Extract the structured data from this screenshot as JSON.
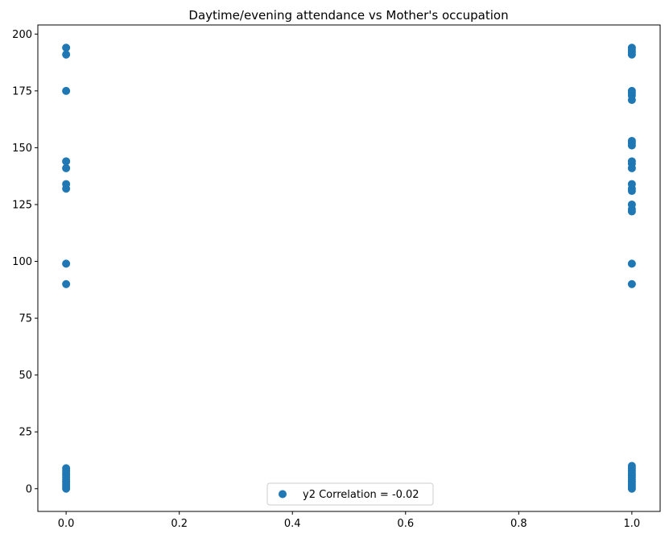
{
  "chart_data": {
    "type": "scatter",
    "title": "Daytime/evening attendance\t vs Mother's occupation",
    "xlabel": "",
    "ylabel": "",
    "xlim": [
      -0.05,
      1.05
    ],
    "ylim": [
      -10,
      204
    ],
    "x_ticks": [
      0.0,
      0.2,
      0.4,
      0.6,
      0.8,
      1.0
    ],
    "x_tick_labels": [
      "0.0",
      "0.2",
      "0.4",
      "0.6",
      "0.8",
      "1.0"
    ],
    "y_ticks": [
      0,
      25,
      50,
      75,
      100,
      125,
      150,
      175,
      200
    ],
    "y_tick_labels": [
      "0",
      "25",
      "50",
      "75",
      "100",
      "125",
      "150",
      "175",
      "200"
    ],
    "grid": false,
    "legend_position": "bottom-center",
    "series": [
      {
        "name": "y2 Correlation = -0.02",
        "color": "#1f77b4",
        "points": [
          {
            "x": 0,
            "y": 0
          },
          {
            "x": 0,
            "y": 1
          },
          {
            "x": 0,
            "y": 2
          },
          {
            "x": 0,
            "y": 3
          },
          {
            "x": 0,
            "y": 4
          },
          {
            "x": 0,
            "y": 5
          },
          {
            "x": 0,
            "y": 6
          },
          {
            "x": 0,
            "y": 7
          },
          {
            "x": 0,
            "y": 8
          },
          {
            "x": 0,
            "y": 9
          },
          {
            "x": 0,
            "y": 90
          },
          {
            "x": 0,
            "y": 99
          },
          {
            "x": 0,
            "y": 132
          },
          {
            "x": 0,
            "y": 134
          },
          {
            "x": 0,
            "y": 141
          },
          {
            "x": 0,
            "y": 144
          },
          {
            "x": 0,
            "y": 175
          },
          {
            "x": 0,
            "y": 191
          },
          {
            "x": 0,
            "y": 194
          },
          {
            "x": 1,
            "y": 0
          },
          {
            "x": 1,
            "y": 1
          },
          {
            "x": 1,
            "y": 2
          },
          {
            "x": 1,
            "y": 3
          },
          {
            "x": 1,
            "y": 4
          },
          {
            "x": 1,
            "y": 5
          },
          {
            "x": 1,
            "y": 6
          },
          {
            "x": 1,
            "y": 7
          },
          {
            "x": 1,
            "y": 8
          },
          {
            "x": 1,
            "y": 9
          },
          {
            "x": 1,
            "y": 10
          },
          {
            "x": 1,
            "y": 90
          },
          {
            "x": 1,
            "y": 99
          },
          {
            "x": 1,
            "y": 122
          },
          {
            "x": 1,
            "y": 123
          },
          {
            "x": 1,
            "y": 125
          },
          {
            "x": 1,
            "y": 131
          },
          {
            "x": 1,
            "y": 132
          },
          {
            "x": 1,
            "y": 134
          },
          {
            "x": 1,
            "y": 141
          },
          {
            "x": 1,
            "y": 143
          },
          {
            "x": 1,
            "y": 144
          },
          {
            "x": 1,
            "y": 151
          },
          {
            "x": 1,
            "y": 152
          },
          {
            "x": 1,
            "y": 153
          },
          {
            "x": 1,
            "y": 171
          },
          {
            "x": 1,
            "y": 173
          },
          {
            "x": 1,
            "y": 174
          },
          {
            "x": 1,
            "y": 175
          },
          {
            "x": 1,
            "y": 191
          },
          {
            "x": 1,
            "y": 192
          },
          {
            "x": 1,
            "y": 193
          },
          {
            "x": 1,
            "y": 194
          }
        ]
      }
    ]
  }
}
